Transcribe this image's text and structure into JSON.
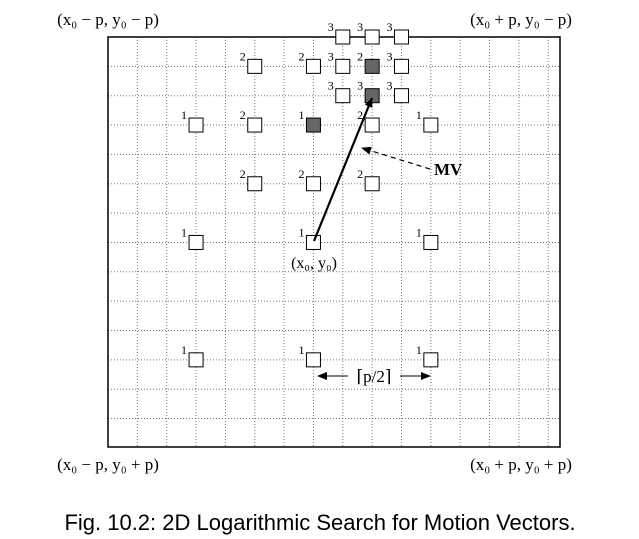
{
  "corners": {
    "top_left": "(x₀ − p, y₀ − p)",
    "top_right": "(x₀ + p, y₀ − p)",
    "bottom_left": "(x₀ − p, y₀ + p)",
    "bottom_right": "(x₀ + p, y₀ + p)"
  },
  "search_points": [
    "1",
    "1",
    "1",
    "1",
    "1",
    "1",
    "1",
    "1",
    "1",
    "2",
    "2",
    "2",
    "2",
    "2",
    "2",
    "2",
    "2",
    "3",
    "3",
    "3",
    "3",
    "3",
    "3",
    "3",
    "3"
  ],
  "origin_label": "(x₀, y₀)",
  "mv_label": "MV",
  "step_label": "⌈p/2⌉",
  "caption": "Fig. 10.2: 2D Logarithmic Search for Motion Vectors."
}
